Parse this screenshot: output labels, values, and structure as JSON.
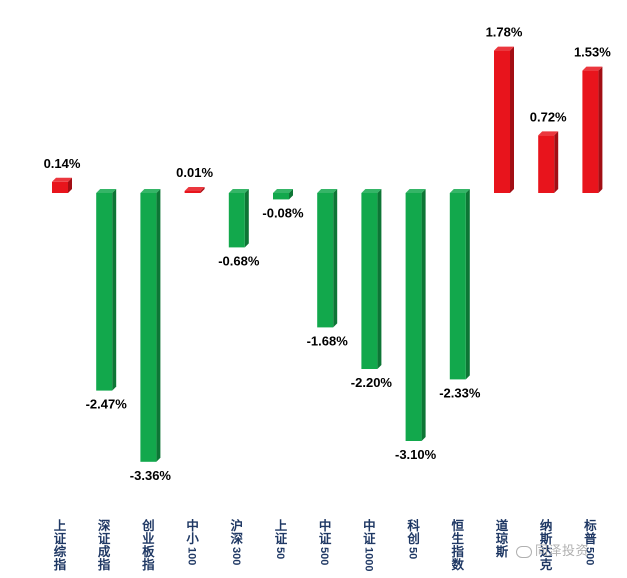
{
  "chart_data": {
    "type": "bar",
    "categories": [
      "上证综指",
      "深证成指",
      "创业板指",
      "中小100",
      "沪深300",
      "上证50",
      "中证500",
      "中证1000",
      "科创50",
      "恒生指数",
      "道琼斯",
      "纳斯达克",
      "标普500"
    ],
    "values": [
      0.14,
      -2.47,
      -3.36,
      0.01,
      -0.68,
      -0.08,
      -1.68,
      -2.2,
      -3.1,
      -2.33,
      1.78,
      0.72,
      1.53
    ],
    "value_labels": [
      "0.14%",
      "-2.47%",
      "-3.36%",
      "0.01%",
      "-0.68%",
      "-0.08%",
      "-1.68%",
      "-2.20%",
      "-3.10%",
      "-2.33%",
      "1.78%",
      "0.72%",
      "1.53%"
    ],
    "title": "",
    "xlabel": "",
    "ylabel": "",
    "grid": false,
    "legend": "none",
    "colors": {
      "positive": "#e8141c",
      "negative": "#12a84c",
      "label": "#1f3864"
    }
  },
  "watermark": "同泽投资"
}
